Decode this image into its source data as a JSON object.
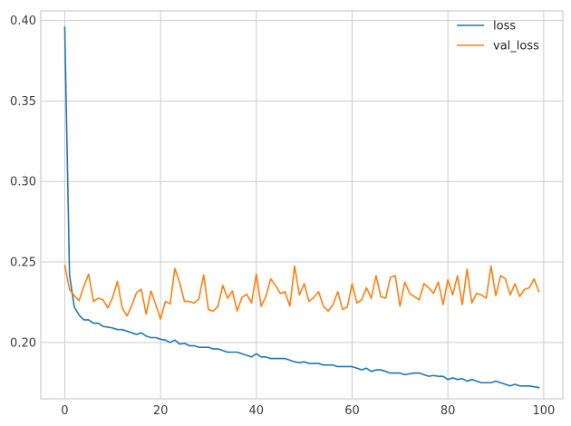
{
  "chart_data": {
    "type": "line",
    "title": "",
    "xlabel": "",
    "ylabel": "",
    "xlim": [
      -5,
      104
    ],
    "ylim": [
      0.165,
      0.406
    ],
    "xticks": [
      0,
      20,
      40,
      60,
      80,
      100
    ],
    "yticks": [
      0.2,
      0.25,
      0.3,
      0.35,
      0.4
    ],
    "xtick_labels": [
      "0",
      "20",
      "40",
      "60",
      "80",
      "100"
    ],
    "ytick_labels": [
      "0.20",
      "0.25",
      "0.30",
      "0.35",
      "0.40"
    ],
    "grid": true,
    "legend_position": "top-right",
    "series": [
      {
        "name": "loss",
        "color": "#1f77b4",
        "values": [
          0.396,
          0.242,
          0.222,
          0.217,
          0.214,
          0.214,
          0.212,
          0.212,
          0.21,
          0.2095,
          0.209,
          0.208,
          0.208,
          0.207,
          0.206,
          0.205,
          0.206,
          0.204,
          0.203,
          0.203,
          0.202,
          0.2015,
          0.2,
          0.2015,
          0.199,
          0.1995,
          0.198,
          0.198,
          0.197,
          0.197,
          0.197,
          0.196,
          0.196,
          0.195,
          0.194,
          0.194,
          0.194,
          0.193,
          0.192,
          0.191,
          0.193,
          0.191,
          0.191,
          0.19,
          0.19,
          0.19,
          0.19,
          0.189,
          0.188,
          0.1875,
          0.188,
          0.187,
          0.187,
          0.187,
          0.186,
          0.186,
          0.186,
          0.185,
          0.185,
          0.185,
          0.185,
          0.184,
          0.183,
          0.184,
          0.182,
          0.183,
          0.183,
          0.182,
          0.181,
          0.181,
          0.181,
          0.18,
          0.1805,
          0.181,
          0.181,
          0.18,
          0.179,
          0.1795,
          0.179,
          0.179,
          0.177,
          0.178,
          0.177,
          0.1775,
          0.176,
          0.177,
          0.176,
          0.175,
          0.175,
          0.175,
          0.176,
          0.175,
          0.174,
          0.173,
          0.174,
          0.173,
          0.173,
          0.173,
          0.1725,
          0.172
        ]
      },
      {
        "name": "val_loss",
        "color": "#ff7f0e",
        "values": [
          0.248,
          0.233,
          0.229,
          0.226,
          0.235,
          0.2425,
          0.2255,
          0.2275,
          0.2265,
          0.2215,
          0.228,
          0.238,
          0.2215,
          0.2165,
          0.223,
          0.231,
          0.233,
          0.2175,
          0.232,
          0.2235,
          0.2145,
          0.2255,
          0.224,
          0.246,
          0.237,
          0.2255,
          0.2255,
          0.2245,
          0.227,
          0.242,
          0.2205,
          0.2195,
          0.2225,
          0.2355,
          0.2275,
          0.232,
          0.2195,
          0.228,
          0.23,
          0.2245,
          0.2425,
          0.2225,
          0.2285,
          0.2395,
          0.2355,
          0.2305,
          0.2315,
          0.2225,
          0.2475,
          0.2295,
          0.2365,
          0.2255,
          0.228,
          0.2315,
          0.2225,
          0.2195,
          0.2235,
          0.2315,
          0.2205,
          0.222,
          0.2365,
          0.2245,
          0.2265,
          0.234,
          0.2275,
          0.2415,
          0.2285,
          0.2275,
          0.2405,
          0.2415,
          0.2225,
          0.2375,
          0.2305,
          0.2285,
          0.2265,
          0.2365,
          0.234,
          0.2305,
          0.2375,
          0.2235,
          0.239,
          0.2295,
          0.2415,
          0.2235,
          0.2455,
          0.2245,
          0.2305,
          0.2295,
          0.2275,
          0.2475,
          0.229,
          0.2415,
          0.2395,
          0.2295,
          0.2365,
          0.2285,
          0.233,
          0.234,
          0.2395,
          0.2315
        ]
      }
    ]
  }
}
